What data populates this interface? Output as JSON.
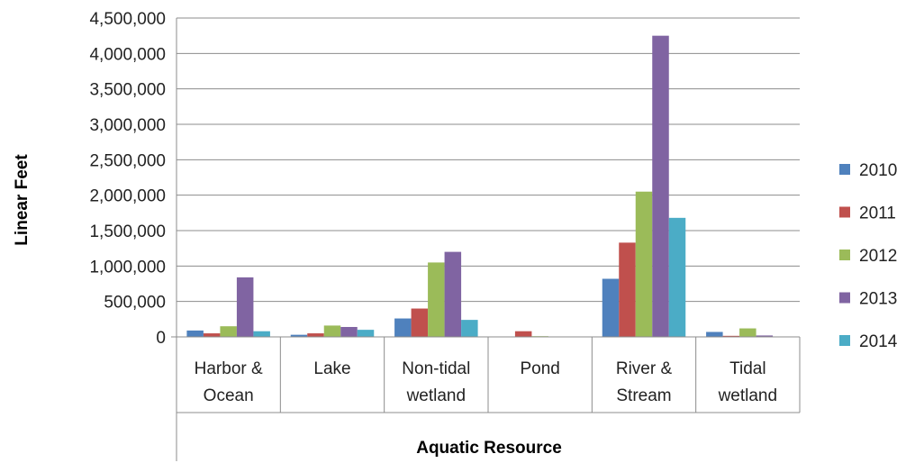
{
  "chart_data": {
    "type": "bar",
    "title": "",
    "xlabel": "Aquatic Resource",
    "ylabel": "Linear Feet",
    "ylim": [
      0,
      4500000
    ],
    "yticks": [
      0,
      500000,
      1000000,
      1500000,
      2000000,
      2500000,
      3000000,
      3500000,
      4000000,
      4500000
    ],
    "ytick_labels": [
      "0",
      "500,000",
      "1,000,000",
      "1,500,000",
      "2,000,000",
      "2,500,000",
      "3,000,000",
      "3,500,000",
      "4,000,000",
      "4,500,000"
    ],
    "categories": [
      [
        "Harbor &",
        "Ocean"
      ],
      [
        "Lake"
      ],
      [
        "Non-tidal",
        "wetland"
      ],
      [
        "Pond"
      ],
      [
        "River &",
        "Stream"
      ],
      [
        "Tidal",
        "wetland"
      ]
    ],
    "series": [
      {
        "name": "2010",
        "color": "#4F81BD",
        "values": [
          90000,
          30000,
          260000,
          0,
          820000,
          70000
        ]
      },
      {
        "name": "2011",
        "color": "#C0504D",
        "values": [
          50000,
          50000,
          400000,
          80000,
          1330000,
          15000
        ]
      },
      {
        "name": "2012",
        "color": "#9BBB59",
        "values": [
          150000,
          160000,
          1050000,
          10000,
          2050000,
          120000
        ]
      },
      {
        "name": "2013",
        "color": "#8064A2",
        "values": [
          840000,
          140000,
          1200000,
          5000,
          4250000,
          20000
        ]
      },
      {
        "name": "2014",
        "color": "#4BACC6",
        "values": [
          80000,
          100000,
          240000,
          5000,
          1680000,
          5000
        ]
      }
    ],
    "grid": true,
    "legend_position": "right"
  }
}
